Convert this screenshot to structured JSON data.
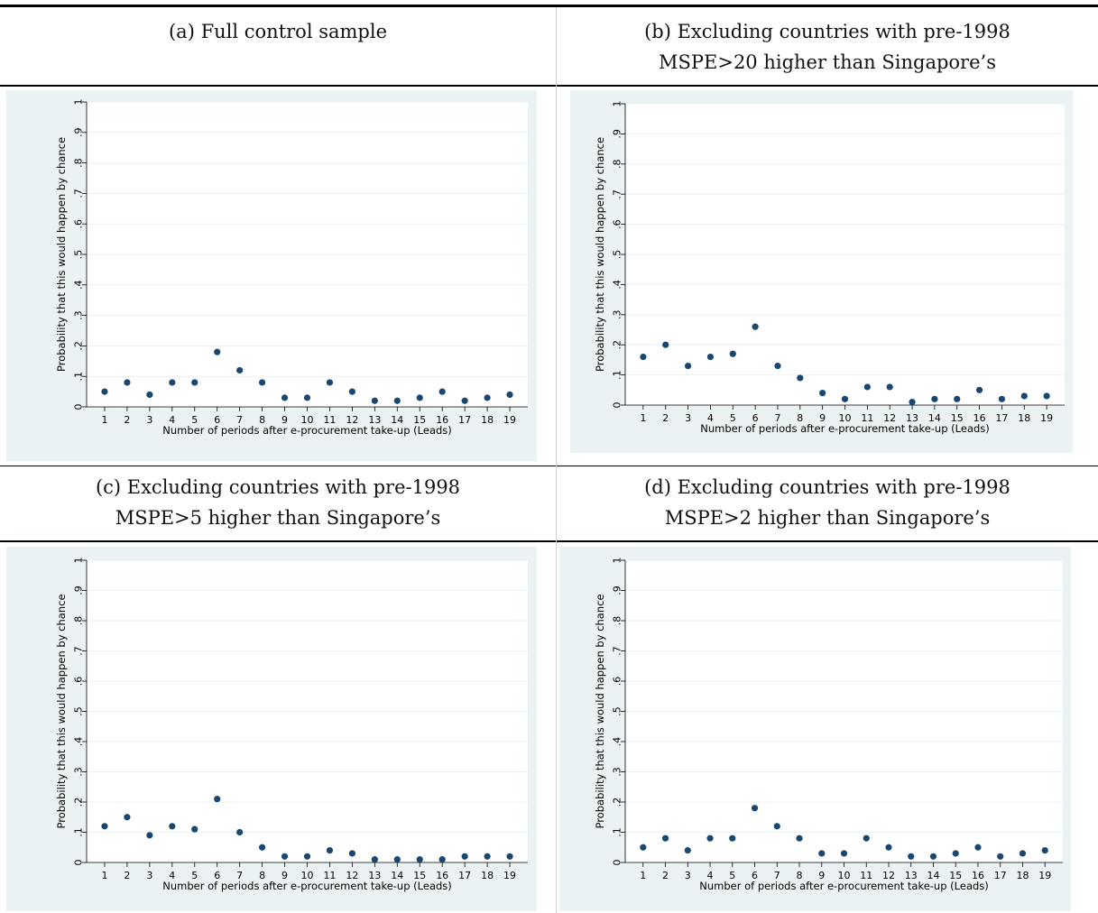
{
  "captions": {
    "a": "(a) Full control sample",
    "b_line1": "(b) Excluding countries with pre-1998",
    "b_line2": "MSPE>20 higher than Singapore’s",
    "c_line1": "(c) Excluding countries with pre-1998",
    "c_line2": "MSPE>5 higher than Singapore’s",
    "d_line1": "(d) Excluding countries with pre-1998",
    "d_line2": "MSPE>2 higher than Singapore’s"
  },
  "colors": {
    "marker": "#1a476f",
    "plot_bg": "#eaf2f3",
    "grid": "#eaf2f3"
  },
  "chart_data": [
    {
      "type": "scatter",
      "panel": "a",
      "xlabel": "Number of periods after e-procurement take-up (Leads)",
      "ylabel": "Probability that this would happen by chance",
      "x": [
        1,
        2,
        3,
        4,
        5,
        6,
        7,
        8,
        9,
        10,
        11,
        12,
        13,
        14,
        15,
        16,
        17,
        18,
        19
      ],
      "y": [
        0.05,
        0.08,
        0.04,
        0.08,
        0.08,
        0.18,
        0.12,
        0.08,
        0.03,
        0.03,
        0.08,
        0.05,
        0.02,
        0.02,
        0.03,
        0.05,
        0.02,
        0.03,
        0.04
      ],
      "ylim": [
        0,
        1
      ],
      "yticks": [
        "0",
        ".1",
        ".2",
        ".3",
        ".4",
        ".5",
        ".6",
        ".7",
        ".8",
        ".9",
        "1"
      ],
      "grid": true
    },
    {
      "type": "scatter",
      "panel": "b",
      "xlabel": "Number of periods after e-procurement take-up (Leads)",
      "ylabel": "Probability that this would happen by chance",
      "x": [
        1,
        2,
        3,
        4,
        5,
        6,
        7,
        8,
        9,
        10,
        11,
        12,
        13,
        14,
        15,
        16,
        17,
        18,
        19
      ],
      "y": [
        0.16,
        0.2,
        0.13,
        0.16,
        0.17,
        0.26,
        0.13,
        0.09,
        0.04,
        0.02,
        0.06,
        0.06,
        0.01,
        0.02,
        0.02,
        0.05,
        0.02,
        0.03,
        0.03
      ],
      "ylim": [
        0,
        1
      ],
      "yticks": [
        "0",
        ".1",
        ".2",
        ".3",
        ".4",
        ".5",
        ".6",
        ".7",
        ".8",
        ".9",
        "1"
      ],
      "grid": true
    },
    {
      "type": "scatter",
      "panel": "c",
      "xlabel": "Number of periods after e-procurement take-up (Leads)",
      "ylabel": "Probability that this would happen by chance",
      "x": [
        1,
        2,
        3,
        4,
        5,
        6,
        7,
        8,
        9,
        10,
        11,
        12,
        13,
        14,
        15,
        16,
        17,
        18,
        19
      ],
      "y": [
        0.12,
        0.15,
        0.09,
        0.12,
        0.11,
        0.21,
        0.1,
        0.05,
        0.02,
        0.02,
        0.04,
        0.03,
        0.01,
        0.01,
        0.01,
        0.01,
        0.02,
        0.02,
        0.02
      ],
      "ylim": [
        0,
        1
      ],
      "yticks": [
        "0",
        ".1",
        ".2",
        ".3",
        ".4",
        ".5",
        ".6",
        ".7",
        ".8",
        ".9",
        "1"
      ],
      "grid": true
    },
    {
      "type": "scatter",
      "panel": "d",
      "xlabel": "Number of periods after e-procurement take-up (Leads)",
      "ylabel": "Probability that this would happen by chance",
      "x": [
        1,
        2,
        3,
        4,
        5,
        6,
        7,
        8,
        9,
        10,
        11,
        12,
        13,
        14,
        15,
        16,
        17,
        18,
        19
      ],
      "y": [
        0.05,
        0.08,
        0.04,
        0.08,
        0.08,
        0.18,
        0.12,
        0.08,
        0.03,
        0.03,
        0.08,
        0.05,
        0.02,
        0.02,
        0.03,
        0.05,
        0.02,
        0.03,
        0.04
      ],
      "ylim": [
        0,
        1
      ],
      "yticks": [
        "0",
        ".1",
        ".2",
        ".3",
        ".4",
        ".5",
        ".6",
        ".7",
        ".8",
        ".9",
        "1"
      ],
      "grid": true
    }
  ]
}
